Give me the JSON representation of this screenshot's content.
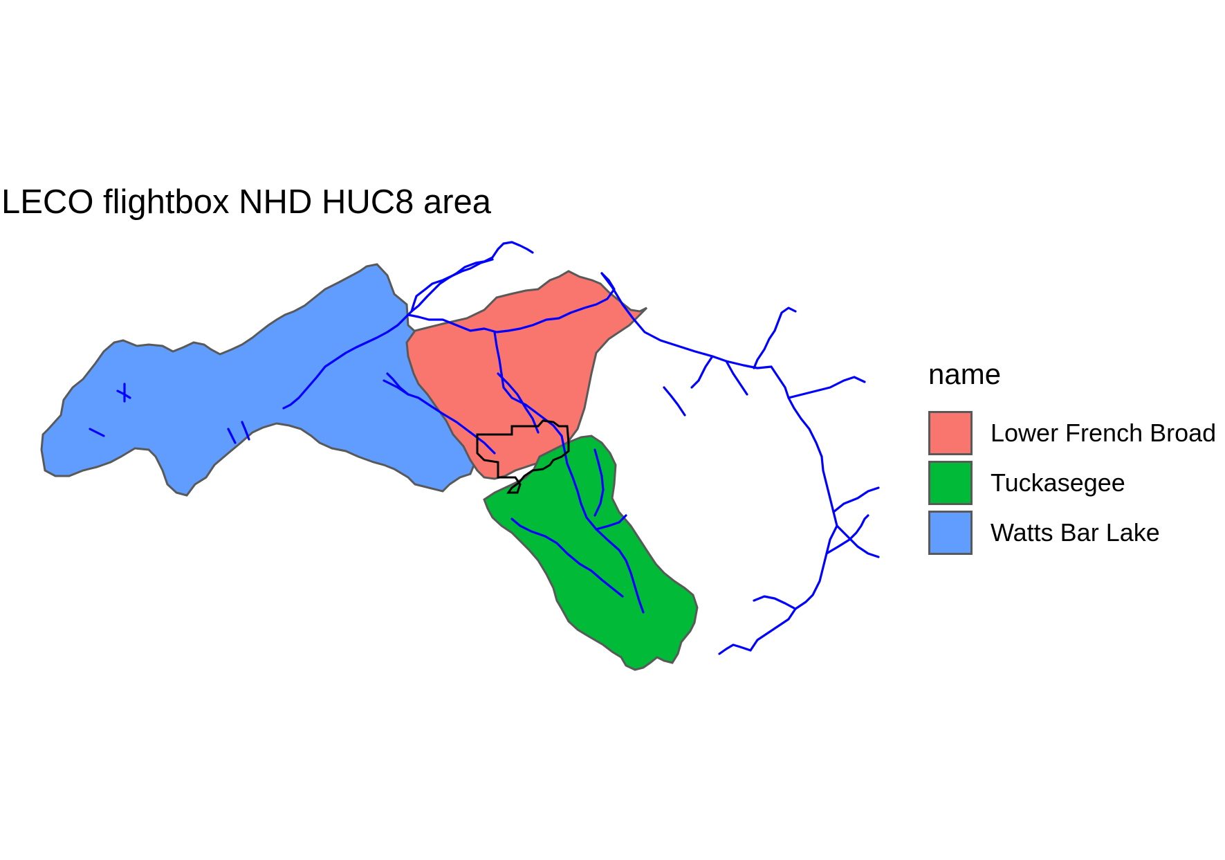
{
  "title": "LECO flightbox NHD HUC8 area",
  "legend": {
    "title": "name",
    "items": [
      {
        "label": "Lower French Broad",
        "color": "#F8766D"
      },
      {
        "label": "Tuckasegee",
        "color": "#00BA38"
      },
      {
        "label": "Watts Bar Lake",
        "color": "#619CFF"
      }
    ]
  },
  "colors": {
    "region_border": "#595959",
    "streams": "#0000FF",
    "flightbox": "#000000",
    "background": "#FFFFFF"
  }
}
